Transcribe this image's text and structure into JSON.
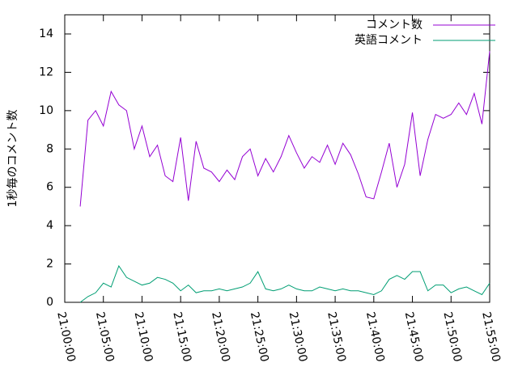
{
  "chart_data": {
    "type": "line",
    "ylabel": "1秒毎のコメント数",
    "x": [
      "21:02:00",
      "21:03:00",
      "21:04:00",
      "21:05:00",
      "21:06:00",
      "21:07:00",
      "21:08:00",
      "21:09:00",
      "21:10:00",
      "21:11:00",
      "21:12:00",
      "21:13:00",
      "21:14:00",
      "21:15:00",
      "21:16:00",
      "21:17:00",
      "21:18:00",
      "21:19:00",
      "21:20:00",
      "21:21:00",
      "21:22:00",
      "21:23:00",
      "21:24:00",
      "21:25:00",
      "21:26:00",
      "21:27:00",
      "21:28:00",
      "21:29:00",
      "21:30:00",
      "21:31:00",
      "21:32:00",
      "21:33:00",
      "21:34:00",
      "21:35:00",
      "21:36:00",
      "21:37:00",
      "21:38:00",
      "21:39:00",
      "21:40:00",
      "21:41:00",
      "21:42:00",
      "21:43:00",
      "21:44:00",
      "21:45:00",
      "21:46:00",
      "21:47:00",
      "21:48:00",
      "21:49:00",
      "21:50:00",
      "21:51:00",
      "21:52:00",
      "21:53:00",
      "21:54:00",
      "21:55:00"
    ],
    "series": [
      {
        "name": "コメント数",
        "color": "#9400d3",
        "values": [
          5.0,
          9.5,
          10.0,
          9.2,
          11.0,
          10.3,
          10.0,
          8.0,
          9.2,
          7.6,
          8.2,
          6.6,
          6.3,
          8.6,
          5.3,
          8.4,
          7.0,
          6.8,
          6.3,
          6.9,
          6.4,
          7.6,
          8.0,
          6.6,
          7.5,
          6.8,
          7.6,
          8.7,
          7.8,
          7.0,
          7.6,
          7.3,
          8.2,
          7.2,
          8.3,
          7.7,
          6.7,
          5.5,
          5.4,
          6.8,
          8.3,
          6.0,
          7.2,
          9.9,
          6.6,
          8.5,
          9.8,
          9.6,
          9.8,
          10.4,
          9.8,
          10.9,
          9.3,
          13.1
        ]
      },
      {
        "name": "英語コメント",
        "color": "#009e73",
        "values": [
          0.0,
          0.3,
          0.5,
          1.0,
          0.8,
          1.9,
          1.3,
          1.1,
          0.9,
          1.0,
          1.3,
          1.2,
          1.0,
          0.6,
          0.9,
          0.5,
          0.6,
          0.6,
          0.7,
          0.6,
          0.7,
          0.8,
          1.0,
          1.6,
          0.7,
          0.6,
          0.7,
          0.9,
          0.7,
          0.6,
          0.6,
          0.8,
          0.7,
          0.6,
          0.7,
          0.6,
          0.6,
          0.5,
          0.4,
          0.6,
          1.2,
          1.4,
          1.2,
          1.6,
          1.6,
          0.6,
          0.9,
          0.9,
          0.5,
          0.7,
          0.8,
          0.6,
          0.4,
          1.0
        ]
      }
    ],
    "xlim": [
      "21:00:00",
      "21:55:00"
    ],
    "xticks": [
      "21:00:00",
      "21:05:00",
      "21:10:00",
      "21:15:00",
      "21:20:00",
      "21:25:00",
      "21:30:00",
      "21:35:00",
      "21:40:00",
      "21:45:00",
      "21:50:00",
      "21:55:00"
    ],
    "ylim": [
      0,
      15
    ],
    "yticks": [
      0,
      2,
      4,
      6,
      8,
      10,
      12,
      14
    ],
    "legend": "top-right"
  }
}
